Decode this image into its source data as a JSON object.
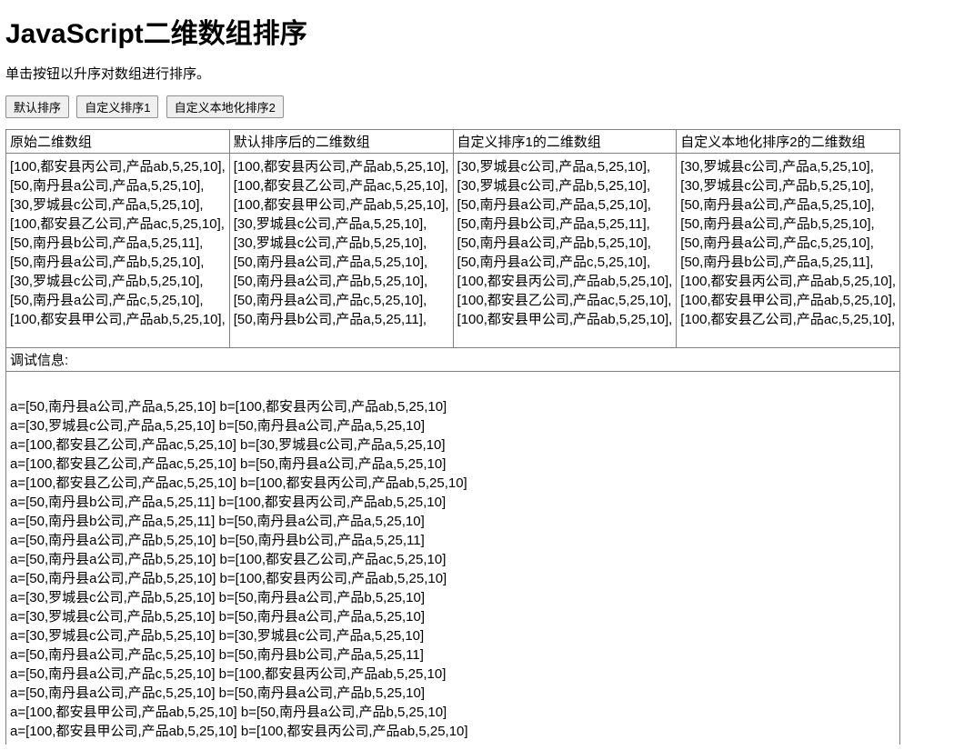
{
  "title": "JavaScript二维数组排序",
  "desc": "单击按钮以升序对数组进行排序。",
  "buttons": {
    "default_sort": "默认排序",
    "custom_sort1": "自定义排序1",
    "custom_locale_sort2": "自定义本地化排序2"
  },
  "table": {
    "headers": {
      "col0": "原始二维数组",
      "col1": "默认排序后的二维数组",
      "col2": "自定义排序1的二维数组",
      "col3": "自定义本地化排序2的二维数组"
    },
    "col0": [
      "[100,都安县丙公司,产品ab,5,25,10],",
      "[50,南丹县a公司,产品a,5,25,10],",
      "[30,罗城县c公司,产品a,5,25,10],",
      "[100,都安县乙公司,产品ac,5,25,10],",
      "[50,南丹县b公司,产品a,5,25,11],",
      "[50,南丹县a公司,产品b,5,25,10],",
      "[30,罗城县c公司,产品b,5,25,10],",
      "[50,南丹县a公司,产品c,5,25,10],",
      "[100,都安县甲公司,产品ab,5,25,10],"
    ],
    "col1": [
      "[100,都安县丙公司,产品ab,5,25,10],",
      "[100,都安县乙公司,产品ac,5,25,10],",
      "[100,都安县甲公司,产品ab,5,25,10],",
      "[30,罗城县c公司,产品a,5,25,10],",
      "[30,罗城县c公司,产品b,5,25,10],",
      "[50,南丹县a公司,产品a,5,25,10],",
      "[50,南丹县a公司,产品b,5,25,10],",
      "[50,南丹县a公司,产品c,5,25,10],",
      "[50,南丹县b公司,产品a,5,25,11],"
    ],
    "col2": [
      "[30,罗城县c公司,产品a,5,25,10],",
      "[30,罗城县c公司,产品b,5,25,10],",
      "[50,南丹县a公司,产品a,5,25,10],",
      "[50,南丹县b公司,产品a,5,25,11],",
      "[50,南丹县a公司,产品b,5,25,10],",
      "[50,南丹县a公司,产品c,5,25,10],",
      "[100,都安县丙公司,产品ab,5,25,10],",
      "[100,都安县乙公司,产品ac,5,25,10],",
      "[100,都安县甲公司,产品ab,5,25,10],"
    ],
    "col3": [
      "[30,罗城县c公司,产品a,5,25,10],",
      "[30,罗城县c公司,产品b,5,25,10],",
      "[50,南丹县a公司,产品a,5,25,10],",
      "[50,南丹县a公司,产品b,5,25,10],",
      "[50,南丹县a公司,产品c,5,25,10],",
      "[50,南丹县b公司,产品a,5,25,11],",
      "[100,都安县丙公司,产品ab,5,25,10],",
      "[100,都安县甲公司,产品ab,5,25,10],",
      "[100,都安县乙公司,产品ac,5,25,10],"
    ],
    "debug_label": "调试信息:",
    "debug_lines": [
      "a=[50,南丹县a公司,产品a,5,25,10] b=[100,都安县丙公司,产品ab,5,25,10]",
      "a=[30,罗城县c公司,产品a,5,25,10] b=[50,南丹县a公司,产品a,5,25,10]",
      "a=[100,都安县乙公司,产品ac,5,25,10] b=[30,罗城县c公司,产品a,5,25,10]",
      "a=[100,都安县乙公司,产品ac,5,25,10] b=[50,南丹县a公司,产品a,5,25,10]",
      "a=[100,都安县乙公司,产品ac,5,25,10] b=[100,都安县丙公司,产品ab,5,25,10]",
      "a=[50,南丹县b公司,产品a,5,25,11] b=[100,都安县丙公司,产品ab,5,25,10]",
      "a=[50,南丹县b公司,产品a,5,25,11] b=[50,南丹县a公司,产品a,5,25,10]",
      "a=[50,南丹县a公司,产品b,5,25,10] b=[50,南丹县b公司,产品a,5,25,11]",
      "a=[50,南丹县a公司,产品b,5,25,10] b=[100,都安县乙公司,产品ac,5,25,10]",
      "a=[50,南丹县a公司,产品b,5,25,10] b=[100,都安县丙公司,产品ab,5,25,10]",
      "a=[30,罗城县c公司,产品b,5,25,10] b=[50,南丹县a公司,产品b,5,25,10]",
      "a=[30,罗城县c公司,产品b,5,25,10] b=[50,南丹县a公司,产品a,5,25,10]",
      "a=[30,罗城县c公司,产品b,5,25,10] b=[30,罗城县c公司,产品a,5,25,10]",
      "a=[50,南丹县a公司,产品c,5,25,10] b=[50,南丹县b公司,产品a,5,25,11]",
      "a=[50,南丹县a公司,产品c,5,25,10] b=[100,都安县丙公司,产品ab,5,25,10]",
      "a=[50,南丹县a公司,产品c,5,25,10] b=[50,南丹县a公司,产品b,5,25,10]",
      "a=[100,都安县甲公司,产品ab,5,25,10] b=[50,南丹县a公司,产品b,5,25,10]",
      "a=[100,都安县甲公司,产品ab,5,25,10] b=[100,都安县丙公司,产品ab,5,25,10]"
    ]
  }
}
